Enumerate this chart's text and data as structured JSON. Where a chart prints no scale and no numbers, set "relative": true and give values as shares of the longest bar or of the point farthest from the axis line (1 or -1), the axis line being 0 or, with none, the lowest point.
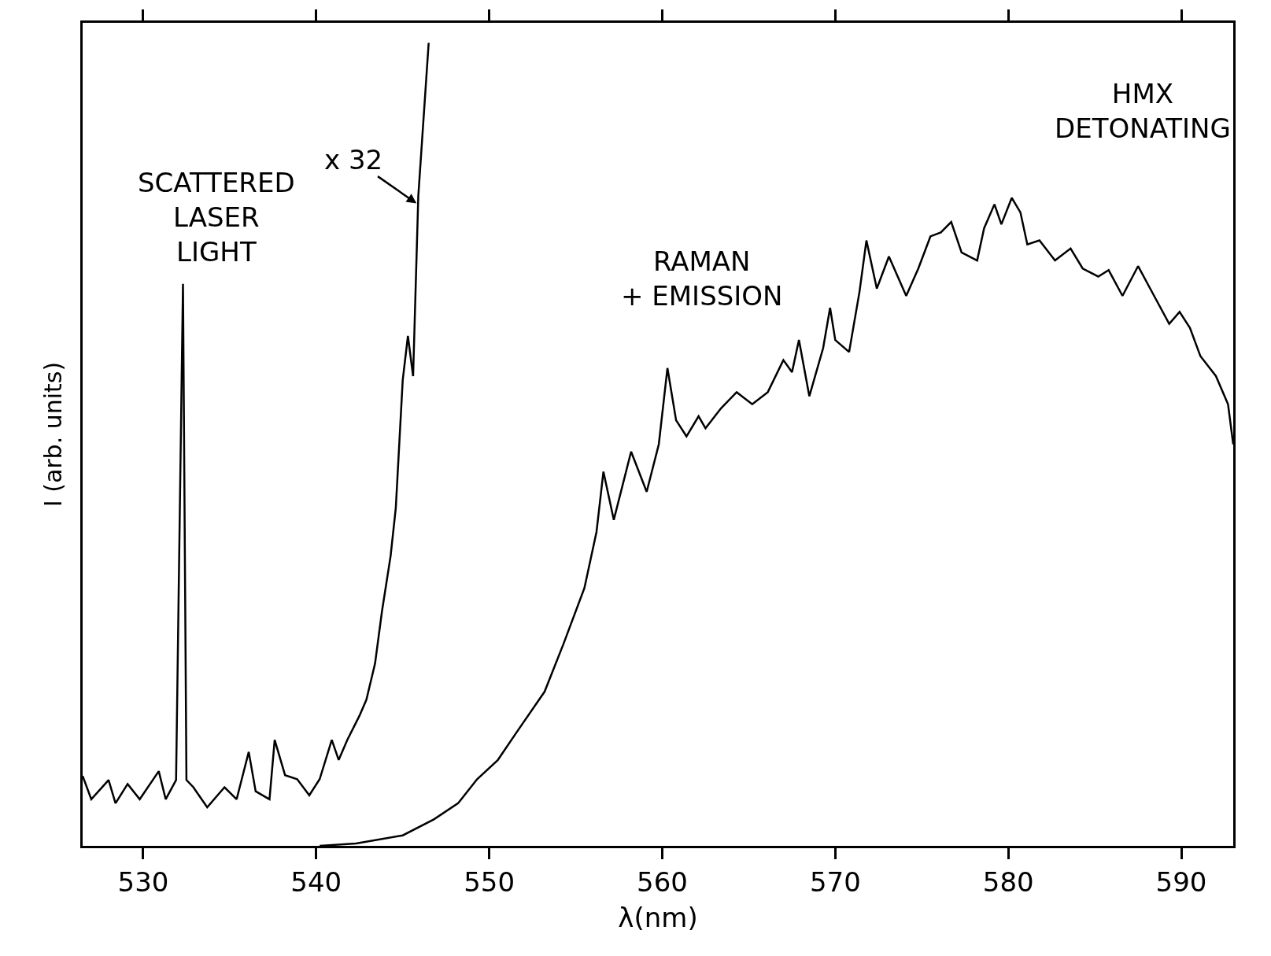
{
  "chart_data": {
    "type": "line",
    "relative": true,
    "xlabel": "λ(nm)",
    "ylabel": "I (arb. units)",
    "xlim": [
      526.5,
      593.0
    ],
    "xticks": [
      530,
      540,
      550,
      560,
      570,
      580,
      590
    ],
    "marker": "none",
    "line_style": "solid",
    "series": [
      {
        "color": "#000000",
        "x": [
          526.5,
          527.0,
          528.0,
          528.4,
          529.1,
          529.8,
          530.9,
          531.3,
          531.9,
          532.3,
          532.5,
          532.9,
          533.7,
          534.7,
          535.4,
          536.1,
          536.5,
          537.3,
          537.6,
          538.2,
          538.9,
          539.6,
          540.2,
          540.9,
          541.3,
          541.8,
          542.5,
          542.9,
          543.4,
          543.8,
          544.3,
          544.6,
          545.0,
          545.3,
          545.6,
          545.9,
          546.5
        ],
        "values": [
          0.087,
          0.058,
          0.082,
          0.053,
          0.077,
          0.058,
          0.093,
          0.058,
          0.082,
          0.7,
          0.082,
          0.073,
          0.048,
          0.073,
          0.058,
          0.117,
          0.068,
          0.058,
          0.132,
          0.088,
          0.083,
          0.063,
          0.083,
          0.132,
          0.107,
          0.132,
          0.162,
          0.182,
          0.227,
          0.292,
          0.361,
          0.421,
          0.58,
          0.635,
          0.585,
          0.809,
          1.0
        ]
      },
      {
        "color": "#000000",
        "x": [
          540.2,
          542.3,
          545.0,
          546.8,
          548.2,
          549.3,
          550.5,
          551.6,
          553.2,
          554.3,
          555.5,
          556.2,
          556.6,
          557.2,
          558.2,
          559.1,
          559.8,
          560.3,
          560.8,
          561.4,
          562.1,
          562.5,
          563.4,
          564.3,
          565.2,
          566.1,
          567.0,
          567.5,
          567.9,
          568.5,
          569.3,
          569.7,
          570.0,
          570.8,
          571.4,
          571.8,
          572.4,
          573.1,
          574.1,
          574.8,
          575.5,
          576.1,
          576.7,
          577.3,
          578.2,
          578.6,
          579.2,
          579.6,
          580.2,
          580.7,
          581.1,
          581.8,
          582.7,
          583.6,
          584.3,
          585.2,
          585.8,
          586.6,
          587.5,
          588.2,
          589.3,
          589.9,
          590.5,
          591.1,
          592.0,
          592.7,
          593.0
        ],
        "values": [
          0,
          0.003,
          0.013,
          0.033,
          0.053,
          0.083,
          0.107,
          0.142,
          0.192,
          0.252,
          0.321,
          0.391,
          0.466,
          0.406,
          0.491,
          0.441,
          0.5,
          0.595,
          0.53,
          0.51,
          0.535,
          0.52,
          0.545,
          0.565,
          0.55,
          0.565,
          0.605,
          0.59,
          0.63,
          0.56,
          0.62,
          0.67,
          0.63,
          0.615,
          0.69,
          0.754,
          0.694,
          0.734,
          0.685,
          0.719,
          0.759,
          0.764,
          0.777,
          0.739,
          0.729,
          0.769,
          0.799,
          0.774,
          0.807,
          0.789,
          0.749,
          0.754,
          0.729,
          0.744,
          0.719,
          0.709,
          0.717,
          0.685,
          0.722,
          0.694,
          0.65,
          0.665,
          0.645,
          0.61,
          0.585,
          0.55,
          0.5
        ]
      }
    ],
    "annotations": [
      "SCATTERED\nLASER\nLIGHT",
      {
        "text": "x 32",
        "x": 545.8,
        "y": 0.8
      },
      "RAMAN\n+ EMISSION",
      "HMX\nDETONATING"
    ]
  }
}
